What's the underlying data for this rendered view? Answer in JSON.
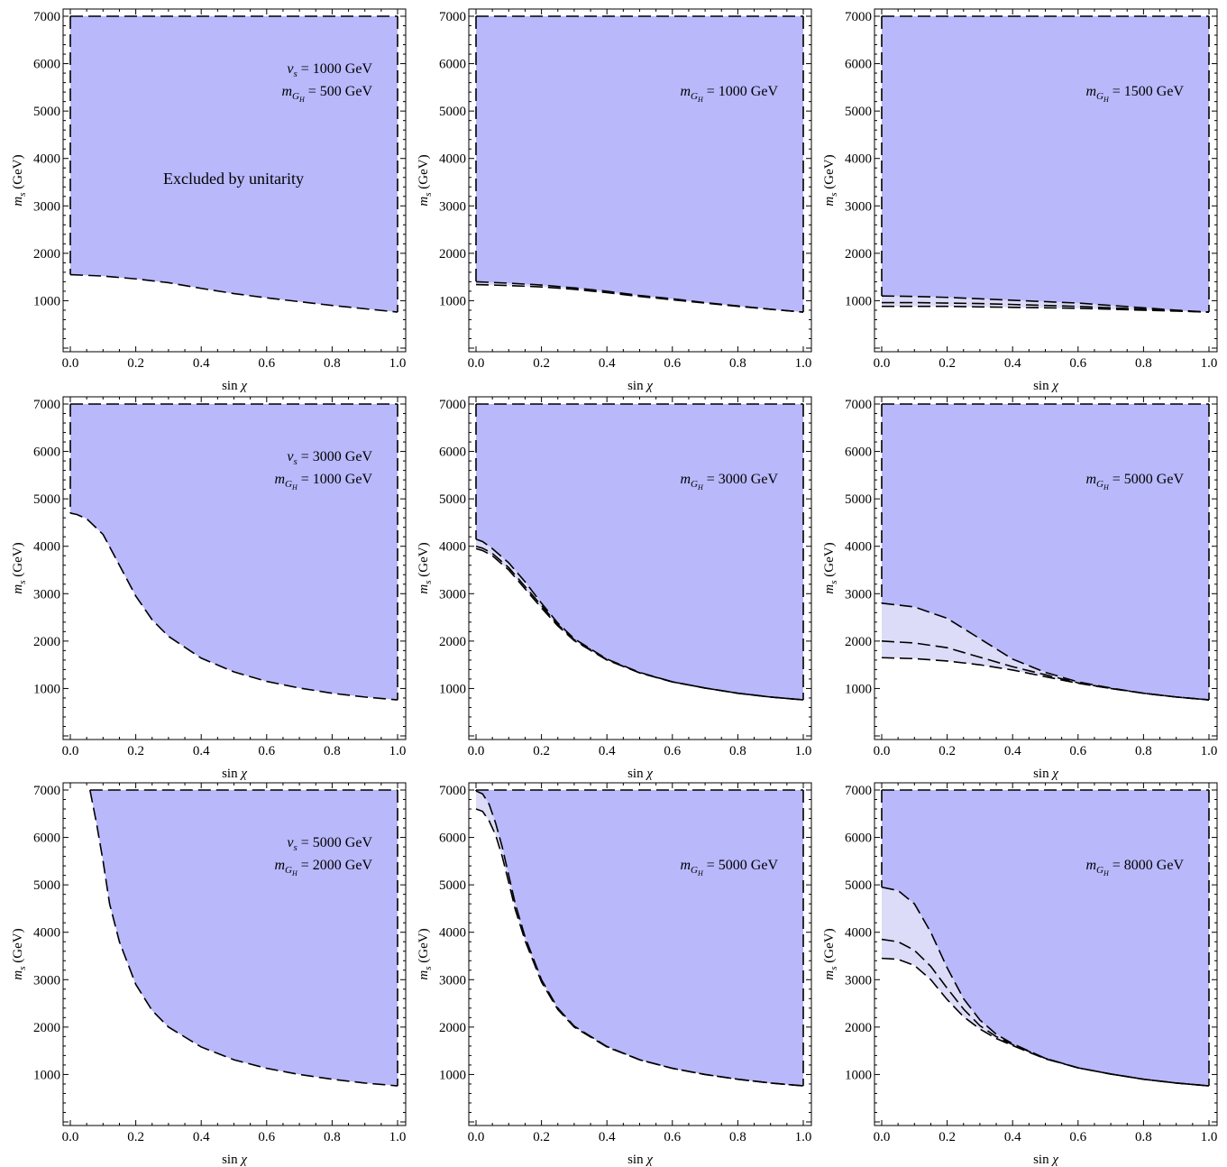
{
  "figure": {
    "fill_color": "#b8b8fb",
    "band_color": "#dcdcf8",
    "line_color": "#000000"
  },
  "chart_data": [
    {
      "type": "area",
      "annotations": [
        "v_s = 1000 GeV",
        "m_G_H = 500 GeV"
      ],
      "region_label": "Excluded by unitarity",
      "xlabel": "sin χ",
      "ylabel": "m_s (GeV)",
      "xlim": [
        0,
        1
      ],
      "ylim": [
        0,
        7000
      ],
      "x_ticks": [
        "0.0",
        "0.2",
        "0.4",
        "0.6",
        "0.8",
        "1.0"
      ],
      "y_ticks": [
        "1000",
        "2000",
        "3000",
        "4000",
        "5000",
        "6000",
        "7000"
      ],
      "ymax": 7000,
      "xstart": 0.0,
      "boundaries": [
        {
          "x": [
            0,
            0.1,
            0.2,
            0.3,
            0.4,
            0.5,
            0.6,
            0.7,
            0.8,
            0.9,
            1.0
          ],
          "y": [
            1550,
            1520,
            1460,
            1380,
            1260,
            1150,
            1060,
            980,
            900,
            830,
            760
          ]
        }
      ],
      "bands": []
    },
    {
      "type": "area",
      "annotations": [
        "m_G_H = 1000 GeV"
      ],
      "region_label": "",
      "xlabel": "sin χ",
      "ylabel": "m_s (GeV)",
      "xlim": [
        0,
        1
      ],
      "ylim": [
        0,
        7000
      ],
      "x_ticks": [
        "0.0",
        "0.2",
        "0.4",
        "0.6",
        "0.8",
        "1.0"
      ],
      "y_ticks": [
        "1000",
        "2000",
        "3000",
        "4000",
        "5000",
        "6000",
        "7000"
      ],
      "ymax": 7000,
      "xstart": 0.0,
      "boundaries": [
        {
          "x": [
            0,
            0.1,
            0.2,
            0.3,
            0.4,
            0.5,
            0.6,
            0.7,
            0.8,
            0.9,
            1.0
          ],
          "y": [
            1400,
            1370,
            1330,
            1270,
            1200,
            1110,
            1040,
            960,
            890,
            820,
            760
          ]
        },
        {
          "x": [
            0,
            0.1,
            0.2,
            0.3,
            0.4,
            0.5,
            0.6,
            0.7,
            0.8,
            0.9,
            1.0
          ],
          "y": [
            1340,
            1320,
            1290,
            1240,
            1170,
            1090,
            1020,
            950,
            880,
            820,
            760
          ]
        }
      ],
      "bands": [
        [
          0,
          1
        ]
      ]
    },
    {
      "type": "area",
      "annotations": [
        "m_G_H = 1500 GeV"
      ],
      "region_label": "",
      "xlabel": "sin χ",
      "ylabel": "m_s (GeV)",
      "xlim": [
        0,
        1
      ],
      "ylim": [
        0,
        7000
      ],
      "x_ticks": [
        "0.0",
        "0.2",
        "0.4",
        "0.6",
        "0.8",
        "1.0"
      ],
      "y_ticks": [
        "1000",
        "2000",
        "3000",
        "4000",
        "5000",
        "6000",
        "7000"
      ],
      "ymax": 7000,
      "xstart": 0.0,
      "boundaries": [
        {
          "x": [
            0,
            0.1,
            0.2,
            0.3,
            0.4,
            0.5,
            0.6,
            0.7,
            0.8,
            0.9,
            1.0
          ],
          "y": [
            1100,
            1090,
            1070,
            1040,
            1010,
            980,
            950,
            900,
            850,
            800,
            760
          ]
        },
        {
          "x": [
            0,
            0.1,
            0.2,
            0.3,
            0.4,
            0.5,
            0.6,
            0.7,
            0.8,
            0.9,
            1.0
          ],
          "y": [
            960,
            960,
            950,
            940,
            920,
            900,
            880,
            850,
            820,
            790,
            760
          ]
        },
        {
          "x": [
            0,
            0.1,
            0.2,
            0.3,
            0.4,
            0.5,
            0.6,
            0.7,
            0.8,
            0.9,
            1.0
          ],
          "y": [
            880,
            880,
            880,
            870,
            860,
            850,
            840,
            820,
            800,
            780,
            760
          ]
        }
      ],
      "bands": [
        [
          0,
          2
        ]
      ]
    },
    {
      "type": "area",
      "annotations": [
        "v_s = 3000 GeV",
        "m_G_H = 1000 GeV"
      ],
      "region_label": "",
      "xlabel": "sin χ",
      "ylabel": "m_s (GeV)",
      "xlim": [
        0,
        1
      ],
      "ylim": [
        0,
        7000
      ],
      "x_ticks": [
        "0.0",
        "0.2",
        "0.4",
        "0.6",
        "0.8",
        "1.0"
      ],
      "y_ticks": [
        "1000",
        "2000",
        "3000",
        "4000",
        "5000",
        "6000",
        "7000"
      ],
      "ymax": 7000,
      "xstart": 0.0,
      "boundaries": [
        {
          "x": [
            0,
            0.02,
            0.05,
            0.1,
            0.15,
            0.2,
            0.25,
            0.3,
            0.4,
            0.5,
            0.6,
            0.7,
            0.8,
            0.9,
            1.0
          ],
          "y": [
            4700,
            4670,
            4580,
            4250,
            3600,
            2950,
            2450,
            2100,
            1640,
            1350,
            1150,
            1010,
            900,
            820,
            760
          ]
        }
      ],
      "bands": []
    },
    {
      "type": "area",
      "annotations": [
        "m_G_H = 3000 GeV"
      ],
      "region_label": "",
      "xlabel": "sin χ",
      "ylabel": "m_s (GeV)",
      "xlim": [
        0,
        1
      ],
      "ylim": [
        0,
        7000
      ],
      "x_ticks": [
        "0.0",
        "0.2",
        "0.4",
        "0.6",
        "0.8",
        "1.0"
      ],
      "y_ticks": [
        "1000",
        "2000",
        "3000",
        "4000",
        "5000",
        "6000",
        "7000"
      ],
      "ymax": 7000,
      "xstart": 0.0,
      "boundaries": [
        {
          "x": [
            0,
            0.02,
            0.05,
            0.1,
            0.15,
            0.2,
            0.25,
            0.3,
            0.4,
            0.5,
            0.6,
            0.7,
            0.8,
            0.9,
            1.0
          ],
          "y": [
            4150,
            4100,
            3950,
            3650,
            3250,
            2800,
            2380,
            2050,
            1620,
            1340,
            1140,
            1010,
            900,
            820,
            760
          ]
        },
        {
          "x": [
            0,
            0.02,
            0.05,
            0.1,
            0.15,
            0.2,
            0.25,
            0.3,
            0.4,
            0.5,
            0.6,
            0.7,
            0.8,
            0.9,
            1.0
          ],
          "y": [
            4000,
            3960,
            3850,
            3550,
            3150,
            2750,
            2350,
            2030,
            1610,
            1330,
            1140,
            1010,
            900,
            820,
            760
          ]
        },
        {
          "x": [
            0,
            0.02,
            0.05,
            0.1,
            0.15,
            0.2,
            0.25,
            0.3,
            0.4,
            0.5,
            0.6,
            0.7,
            0.8,
            0.9,
            1.0
          ],
          "y": [
            3950,
            3910,
            3800,
            3500,
            3100,
            2700,
            2320,
            2010,
            1600,
            1330,
            1140,
            1010,
            900,
            820,
            760
          ]
        }
      ],
      "bands": [
        [
          0,
          2
        ]
      ]
    },
    {
      "type": "area",
      "annotations": [
        "m_G_H = 5000 GeV"
      ],
      "region_label": "",
      "xlabel": "sin χ",
      "ylabel": "m_s (GeV)",
      "xlim": [
        0,
        1
      ],
      "ylim": [
        0,
        7000
      ],
      "x_ticks": [
        "0.0",
        "0.2",
        "0.4",
        "0.6",
        "0.8",
        "1.0"
      ],
      "y_ticks": [
        "1000",
        "2000",
        "3000",
        "4000",
        "5000",
        "6000",
        "7000"
      ],
      "ymax": 7000,
      "xstart": 0.0,
      "boundaries": [
        {
          "x": [
            0,
            0.1,
            0.2,
            0.3,
            0.4,
            0.5,
            0.6,
            0.7,
            0.8,
            0.9,
            1.0
          ],
          "y": [
            2800,
            2720,
            2480,
            2050,
            1620,
            1340,
            1140,
            1010,
            900,
            820,
            760
          ]
        },
        {
          "x": [
            0,
            0.1,
            0.2,
            0.3,
            0.4,
            0.5,
            0.6,
            0.7,
            0.8,
            0.9,
            1.0
          ],
          "y": [
            2000,
            1960,
            1860,
            1660,
            1460,
            1290,
            1120,
            1000,
            900,
            820,
            760
          ]
        },
        {
          "x": [
            0,
            0.1,
            0.2,
            0.3,
            0.4,
            0.5,
            0.6,
            0.7,
            0.8,
            0.9,
            1.0
          ],
          "y": [
            1650,
            1630,
            1580,
            1500,
            1390,
            1250,
            1110,
            1000,
            900,
            820,
            760
          ]
        }
      ],
      "bands": [
        [
          0,
          2
        ]
      ]
    },
    {
      "type": "area",
      "annotations": [
        "v_s = 5000 GeV",
        "m_G_H = 2000 GeV"
      ],
      "region_label": "",
      "xlabel": "sin χ",
      "ylabel": "m_s (GeV)",
      "xlim": [
        0,
        1
      ],
      "ylim": [
        0,
        7000
      ],
      "x_ticks": [
        "0.0",
        "0.2",
        "0.4",
        "0.6",
        "0.8",
        "1.0"
      ],
      "y_ticks": [
        "1000",
        "2000",
        "3000",
        "4000",
        "5000",
        "6000",
        "7000"
      ],
      "ymax": 7000,
      "xstart": 0.06,
      "boundaries": [
        {
          "x": [
            0.06,
            0.08,
            0.1,
            0.12,
            0.15,
            0.2,
            0.25,
            0.3,
            0.4,
            0.5,
            0.6,
            0.7,
            0.8,
            0.9,
            1.0
          ],
          "y": [
            7000,
            6300,
            5500,
            4600,
            3800,
            2900,
            2350,
            2000,
            1580,
            1310,
            1130,
            1000,
            900,
            820,
            760
          ]
        }
      ],
      "bands": []
    },
    {
      "type": "area",
      "annotations": [
        "m_G_H = 5000 GeV"
      ],
      "region_label": "",
      "xlabel": "sin χ",
      "ylabel": "m_s (GeV)",
      "xlim": [
        0,
        1
      ],
      "ylim": [
        0,
        7000
      ],
      "x_ticks": [
        "0.0",
        "0.2",
        "0.4",
        "0.6",
        "0.8",
        "1.0"
      ],
      "y_ticks": [
        "1000",
        "2000",
        "3000",
        "4000",
        "5000",
        "6000",
        "7000"
      ],
      "ymax": 7000,
      "xstart": 0.0,
      "boundaries": [
        {
          "x": [
            0,
            0.02,
            0.04,
            0.06,
            0.08,
            0.1,
            0.12,
            0.15,
            0.2,
            0.25,
            0.3,
            0.4,
            0.5,
            0.6,
            0.7,
            0.8,
            0.9,
            1.0
          ],
          "y": [
            6980,
            6920,
            6700,
            6300,
            5800,
            5200,
            4600,
            3900,
            3000,
            2400,
            2020,
            1590,
            1310,
            1130,
            1000,
            900,
            820,
            760
          ]
        },
        {
          "x": [
            0,
            0.02,
            0.04,
            0.06,
            0.08,
            0.1,
            0.12,
            0.15,
            0.2,
            0.25,
            0.3,
            0.4,
            0.5,
            0.6,
            0.7,
            0.8,
            0.9,
            1.0
          ],
          "y": [
            6600,
            6550,
            6350,
            6050,
            5600,
            5050,
            4480,
            3820,
            2950,
            2370,
            2000,
            1580,
            1310,
            1130,
            1000,
            900,
            820,
            760
          ]
        }
      ],
      "bands": [
        [
          0,
          1
        ]
      ]
    },
    {
      "type": "area",
      "annotations": [
        "m_G_H = 8000 GeV"
      ],
      "region_label": "",
      "xlabel": "sin χ",
      "ylabel": "m_s (GeV)",
      "xlim": [
        0,
        1
      ],
      "ylim": [
        0,
        7000
      ],
      "x_ticks": [
        "0.0",
        "0.2",
        "0.4",
        "0.6",
        "0.8",
        "1.0"
      ],
      "y_ticks": [
        "1000",
        "2000",
        "3000",
        "4000",
        "5000",
        "6000",
        "7000"
      ],
      "ymax": 7000,
      "xstart": 0.0,
      "boundaries": [
        {
          "x": [
            0,
            0.05,
            0.1,
            0.15,
            0.2,
            0.25,
            0.3,
            0.35,
            0.4,
            0.5,
            0.6,
            0.7,
            0.8,
            0.9,
            1.0
          ],
          "y": [
            4950,
            4880,
            4600,
            4000,
            3250,
            2600,
            2150,
            1850,
            1650,
            1340,
            1140,
            1010,
            900,
            820,
            760
          ]
        },
        {
          "x": [
            0,
            0.05,
            0.1,
            0.15,
            0.2,
            0.25,
            0.3,
            0.35,
            0.4,
            0.5,
            0.6,
            0.7,
            0.8,
            0.9,
            1.0
          ],
          "y": [
            3850,
            3800,
            3620,
            3280,
            2820,
            2380,
            2030,
            1800,
            1630,
            1340,
            1140,
            1010,
            900,
            820,
            760
          ]
        },
        {
          "x": [
            0,
            0.05,
            0.1,
            0.15,
            0.2,
            0.25,
            0.3,
            0.35,
            0.4,
            0.5,
            0.6,
            0.7,
            0.8,
            0.9,
            1.0
          ],
          "y": [
            3450,
            3430,
            3300,
            3000,
            2580,
            2220,
            1960,
            1760,
            1610,
            1330,
            1140,
            1010,
            900,
            820,
            760
          ]
        }
      ],
      "bands": [
        [
          0,
          2
        ]
      ]
    }
  ]
}
